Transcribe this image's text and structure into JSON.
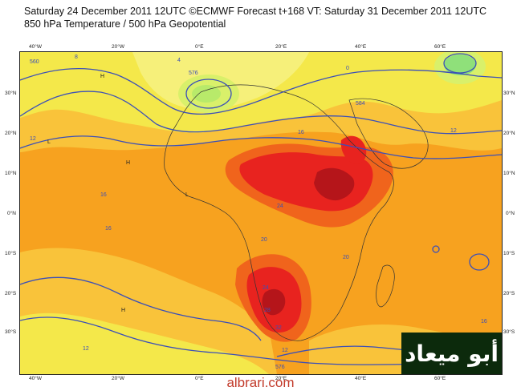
{
  "header": {
    "title_line1": "Saturday 24 December 2011 12UTC ©ECMWF Forecast t+168 VT: Saturday 31 December 2011 12UTC",
    "title_line2": "850 hPa Temperature / 500 hPa Geopotential"
  },
  "axes": {
    "lon_labels": [
      "40°W",
      "20°W",
      "0°E",
      "20°E",
      "40°E",
      "60°E"
    ],
    "lat_labels": [
      "30°N",
      "20°N",
      "10°N",
      "0°N",
      "10°S",
      "20°S",
      "30°S"
    ]
  },
  "contour_labels": [
    "560",
    "8",
    "4",
    "H",
    "L",
    "12",
    "576",
    "584",
    "16",
    "20",
    "24",
    "28",
    "32",
    "0"
  ],
  "colors": {
    "background_orange": "#f7a21f",
    "light_orange": "#f9c33a",
    "yellow": "#f4e84a",
    "pale_yellow": "#f6f07a",
    "light_green": "#d9f06a",
    "green": "#8fe07a",
    "red_orange": "#f0641c",
    "red": "#e8231f",
    "dark_red": "#b5151a",
    "contour_blue": "#3b4fb8"
  },
  "watermark": {
    "text": "أبو ميعاد"
  },
  "footer": {
    "text": "albrari.com"
  }
}
